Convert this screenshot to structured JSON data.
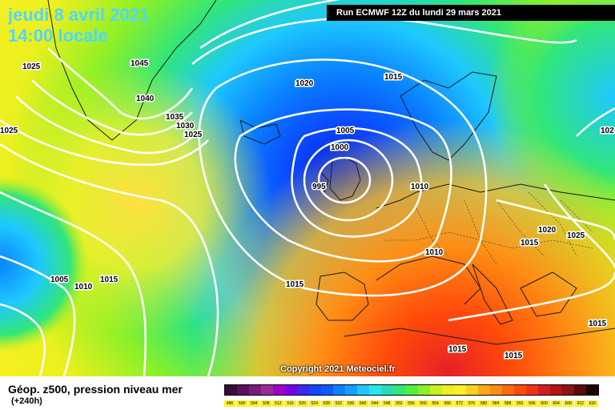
{
  "header": {
    "date_line": "jeudi 8 avril 2021",
    "time_line": "14:00 locale",
    "run_info": "Run ECMWF 12Z du lundi 29 mars 2021"
  },
  "copyright": "Copyright 2021 Meteociel.fr",
  "legend": {
    "title": "Géop. z500, pression niveau mer",
    "subtitle": "(+240h)",
    "scale_values": [
      "496",
      "500",
      "504",
      "508",
      "512",
      "516",
      "520",
      "524",
      "528",
      "532",
      "536",
      "540",
      "544",
      "548",
      "552",
      "556",
      "560",
      "564",
      "568",
      "572",
      "576",
      "580",
      "584",
      "588",
      "592",
      "596",
      "600",
      "604",
      "608",
      "612",
      "616"
    ],
    "scale_colors": [
      "#3c0a3c",
      "#5a0f5a",
      "#7a1a7a",
      "#9a2a9a",
      "#a000c8",
      "#7800e6",
      "#3c28f0",
      "#1446ff",
      "#0a5aff",
      "#0a82ff",
      "#14a0ff",
      "#1ec8ff",
      "#28e6f0",
      "#2adcb4",
      "#32e678",
      "#50f03c",
      "#8cf028",
      "#c8f01e",
      "#ebf01e",
      "#fff028",
      "#ffd21e",
      "#ffaa14",
      "#ff8c14",
      "#ff6a0a",
      "#ff4a0a",
      "#f03214",
      "#d21e1e",
      "#b41414",
      "#8c1414",
      "#5a0a0a",
      "#1e0000"
    ]
  },
  "isobars": [
    {
      "text": "1025"
    },
    {
      "text": "1045"
    },
    {
      "text": "1040"
    },
    {
      "text": "1035"
    },
    {
      "text": "1030"
    },
    {
      "text": "1025"
    },
    {
      "text": "1025"
    },
    {
      "text": "1020"
    },
    {
      "text": "1015"
    },
    {
      "text": "1005"
    },
    {
      "text": "1000"
    },
    {
      "text": "995"
    },
    {
      "text": "1010"
    },
    {
      "text": "1010"
    },
    {
      "text": "1015"
    },
    {
      "text": "1020"
    },
    {
      "text": "1025"
    },
    {
      "text": "1005"
    },
    {
      "text": "1010"
    },
    {
      "text": "1015"
    },
    {
      "text": "1015"
    },
    {
      "text": "1015"
    },
    {
      "text": "1015"
    },
    {
      "text": "1015"
    },
    {
      "text": "102"
    }
  ]
}
